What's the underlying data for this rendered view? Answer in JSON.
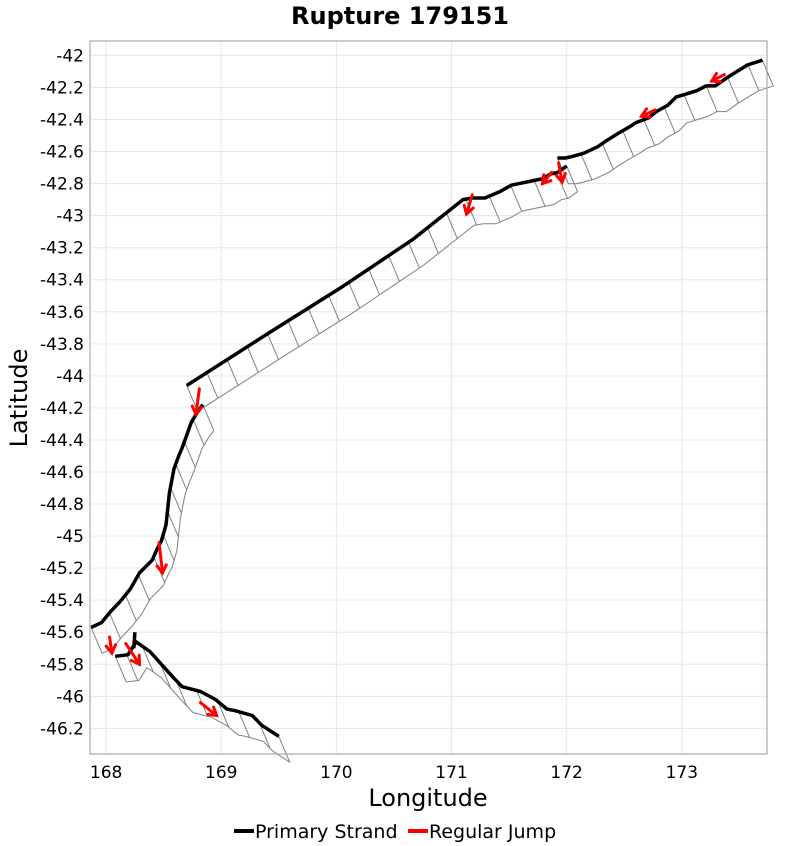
{
  "chart_data": {
    "type": "line",
    "title": "Rupture 179151",
    "xlabel": "Longitude",
    "ylabel": "Latitude",
    "xlim": [
      167.86,
      173.74
    ],
    "ylim": [
      -46.36,
      -41.91
    ],
    "xticks": [
      168,
      169,
      170,
      171,
      172,
      173
    ],
    "yticks": [
      -42,
      -42.2,
      -42.4,
      -42.6,
      -42.8,
      -43,
      -43.2,
      -43.4,
      -43.6,
      -43.8,
      -44,
      -44.2,
      -44.4,
      -44.6,
      -44.8,
      -45,
      -45.2,
      -45.4,
      -45.6,
      -45.8,
      -46,
      -46.2
    ],
    "grid": true,
    "legend_position": "bottom",
    "colors": {
      "primary": "#000000",
      "jump": "#ff0000",
      "outline": "#808080"
    },
    "series": [
      {
        "name": "Primary Strand",
        "segments": [
          [
            [
              169.5,
              -46.25
            ],
            [
              169.35,
              -46.18
            ],
            [
              169.27,
              -46.12
            ],
            [
              169.12,
              -46.09
            ],
            [
              169.05,
              -46.08
            ],
            [
              168.95,
              -46.02
            ],
            [
              168.82,
              -45.97
            ],
            [
              168.66,
              -45.94
            ],
            [
              168.58,
              -45.88
            ],
            [
              168.48,
              -45.8
            ],
            [
              168.38,
              -45.72
            ],
            [
              168.26,
              -45.66
            ],
            [
              168.19,
              -45.74
            ],
            [
              168.08,
              -45.75
            ]
          ],
          [
            [
              168.25,
              -45.6
            ],
            [
              168.24,
              -45.7
            ]
          ],
          [
            [
              167.87,
              -45.57
            ],
            [
              167.96,
              -45.54
            ],
            [
              168.04,
              -45.47
            ],
            [
              168.12,
              -45.41
            ],
            [
              168.21,
              -45.33
            ],
            [
              168.29,
              -45.23
            ],
            [
              168.4,
              -45.15
            ],
            [
              168.45,
              -45.07
            ],
            [
              168.48,
              -45.03
            ],
            [
              168.52,
              -44.93
            ],
            [
              168.55,
              -44.73
            ],
            [
              168.59,
              -44.58
            ],
            [
              168.63,
              -44.5
            ],
            [
              168.66,
              -44.45
            ],
            [
              168.71,
              -44.35
            ],
            [
              168.74,
              -44.29
            ],
            [
              168.79,
              -44.23
            ],
            [
              168.84,
              -44.18
            ]
          ],
          [
            [
              168.7,
              -44.06
            ],
            [
              169.44,
              -43.72
            ],
            [
              170.06,
              -43.44
            ],
            [
              170.66,
              -43.15
            ],
            [
              171.1,
              -42.9
            ],
            [
              171.18,
              -42.89
            ],
            [
              171.29,
              -42.89
            ],
            [
              171.42,
              -42.85
            ],
            [
              171.52,
              -42.81
            ],
            [
              171.72,
              -42.78
            ],
            [
              171.79,
              -42.77
            ],
            [
              171.86,
              -42.74
            ],
            [
              171.92,
              -42.73
            ],
            [
              172.0,
              -42.69
            ]
          ],
          [
            [
              171.92,
              -42.64
            ],
            [
              171.99,
              -42.64
            ],
            [
              172.05,
              -42.63
            ],
            [
              172.15,
              -42.61
            ],
            [
              172.27,
              -42.57
            ],
            [
              172.35,
              -42.53
            ],
            [
              172.44,
              -42.49
            ],
            [
              172.56,
              -42.44
            ],
            [
              172.6,
              -42.42
            ],
            [
              172.71,
              -42.39
            ],
            [
              172.78,
              -42.35
            ],
            [
              172.88,
              -42.31
            ],
            [
              172.95,
              -42.26
            ],
            [
              173.04,
              -42.24
            ],
            [
              173.13,
              -42.22
            ],
            [
              173.21,
              -42.19
            ],
            [
              173.29,
              -42.19
            ],
            [
              173.39,
              -42.14
            ],
            [
              173.57,
              -42.06
            ],
            [
              173.7,
              -42.03
            ]
          ]
        ]
      },
      {
        "name": "Regular Jump",
        "arrows": [
          [
            [
              168.81,
              -44.08
            ],
            [
              168.78,
              -44.24
            ]
          ],
          [
            [
              168.46,
              -45.04
            ],
            [
              168.49,
              -45.23
            ]
          ],
          [
            [
              168.03,
              -45.63
            ],
            [
              168.05,
              -45.73
            ]
          ],
          [
            [
              168.17,
              -45.67
            ],
            [
              168.29,
              -45.8
            ]
          ],
          [
            [
              168.82,
              -46.04
            ],
            [
              168.96,
              -46.12
            ]
          ],
          [
            [
              171.18,
              -42.87
            ],
            [
              171.13,
              -42.99
            ]
          ],
          [
            [
              171.93,
              -42.67
            ],
            [
              171.96,
              -42.79
            ]
          ],
          [
            [
              171.87,
              -42.73
            ],
            [
              171.79,
              -42.8
            ]
          ],
          [
            [
              172.77,
              -42.34
            ],
            [
              172.65,
              -42.38
            ]
          ],
          [
            [
              173.37,
              -42.12
            ],
            [
              173.26,
              -42.16
            ]
          ]
        ]
      }
    ],
    "fault_sections": [
      [
        [
          169.5,
          -46.25
        ],
        [
          169.35,
          -46.18
        ],
        [
          169.27,
          -46.12
        ],
        [
          169.12,
          -46.09
        ],
        [
          169.05,
          -46.08
        ],
        [
          168.95,
          -46.02
        ],
        [
          168.82,
          -45.97
        ],
        [
          168.66,
          -45.94
        ],
        [
          168.58,
          -45.88
        ],
        [
          168.48,
          -45.8
        ],
        [
          168.38,
          -45.72
        ],
        [
          168.26,
          -45.66
        ],
        [
          168.19,
          -45.74
        ],
        [
          168.08,
          -45.75
        ]
      ],
      [
        [
          167.87,
          -45.57
        ],
        [
          167.96,
          -45.54
        ],
        [
          168.04,
          -45.47
        ],
        [
          168.12,
          -45.41
        ],
        [
          168.21,
          -45.33
        ],
        [
          168.29,
          -45.23
        ],
        [
          168.4,
          -45.15
        ],
        [
          168.45,
          -45.07
        ],
        [
          168.48,
          -45.03
        ],
        [
          168.52,
          -44.93
        ],
        [
          168.55,
          -44.73
        ],
        [
          168.59,
          -44.58
        ],
        [
          168.63,
          -44.5
        ],
        [
          168.66,
          -44.45
        ],
        [
          168.71,
          -44.35
        ],
        [
          168.74,
          -44.29
        ],
        [
          168.79,
          -44.23
        ],
        [
          168.84,
          -44.18
        ]
      ],
      [
        [
          168.7,
          -44.06
        ],
        [
          169.44,
          -43.72
        ],
        [
          170.06,
          -43.44
        ],
        [
          170.66,
          -43.15
        ],
        [
          171.1,
          -42.9
        ],
        [
          171.18,
          -42.89
        ],
        [
          171.29,
          -42.89
        ],
        [
          171.42,
          -42.85
        ],
        [
          171.52,
          -42.81
        ],
        [
          171.72,
          -42.78
        ],
        [
          171.79,
          -42.77
        ],
        [
          171.86,
          -42.74
        ],
        [
          171.92,
          -42.73
        ],
        [
          172.0,
          -42.69
        ]
      ],
      [
        [
          171.92,
          -42.64
        ],
        [
          171.99,
          -42.64
        ],
        [
          172.05,
          -42.63
        ],
        [
          172.15,
          -42.61
        ],
        [
          172.27,
          -42.57
        ],
        [
          172.35,
          -42.53
        ],
        [
          172.44,
          -42.49
        ],
        [
          172.56,
          -42.44
        ],
        [
          172.6,
          -42.42
        ],
        [
          172.71,
          -42.39
        ],
        [
          172.78,
          -42.35
        ],
        [
          172.88,
          -42.31
        ],
        [
          172.95,
          -42.26
        ],
        [
          173.04,
          -42.24
        ],
        [
          173.13,
          -42.22
        ],
        [
          173.21,
          -42.19
        ],
        [
          173.29,
          -42.19
        ],
        [
          173.39,
          -42.14
        ],
        [
          173.57,
          -42.06
        ],
        [
          173.7,
          -42.03
        ]
      ]
    ]
  }
}
